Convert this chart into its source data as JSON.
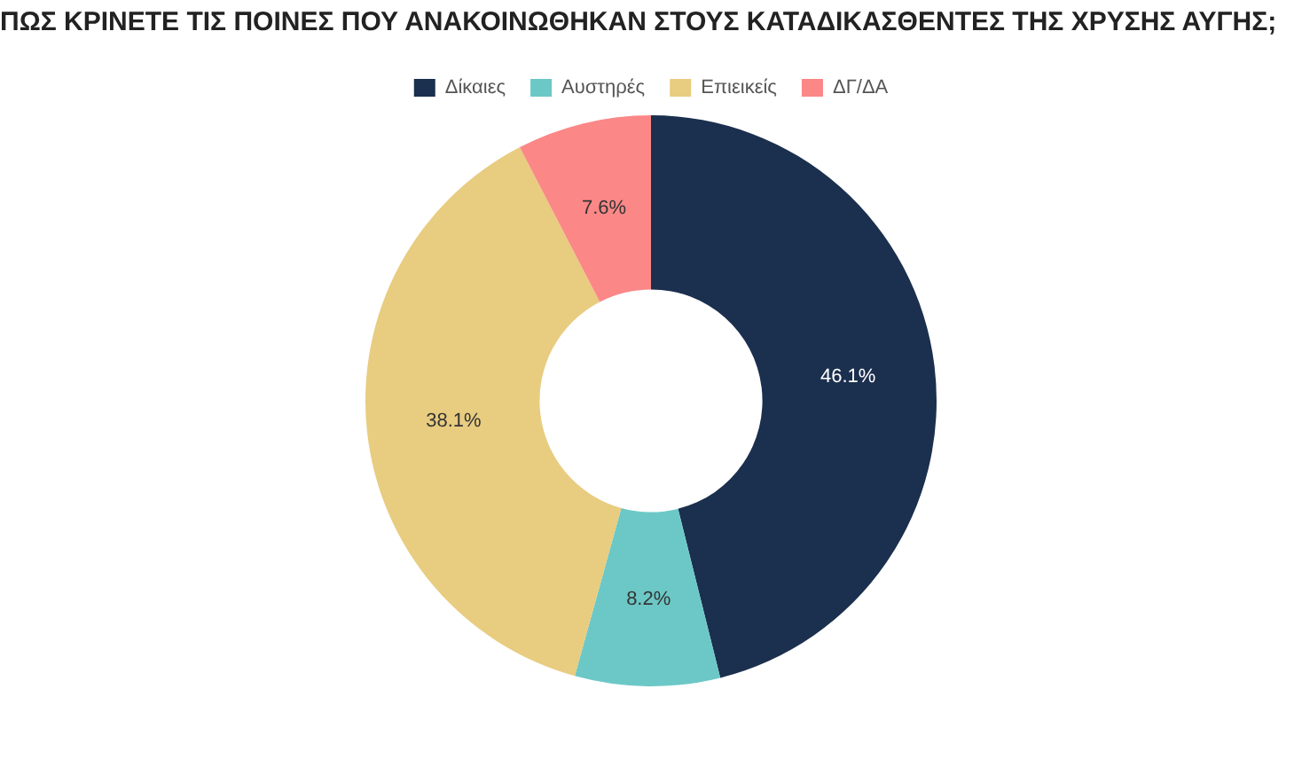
{
  "chart_data": {
    "type": "donut",
    "title": "ΠΩΣ ΚΡΙΝΕΤΕ ΤΙΣ ΠΟΙΝΕΣ ΠΟΥ ΑΝΑΚΟΙΝΩΘΗΚΑΝ ΣΤΟΥΣ ΚΑΤΑΔΙΚΑΣΘΕΝΤΕΣ ΤΗΣ ΧΡΥΣΗΣ ΑΥΓΗΣ;",
    "categories": [
      "Δίκαιες",
      "Αυστηρές",
      "Επιεικείς",
      "ΔΓ/ΔΑ"
    ],
    "values": [
      46.1,
      8.2,
      38.1,
      7.6
    ],
    "colors": [
      "#1b2f4e",
      "#6cc8c6",
      "#e8cc80",
      "#fb8787"
    ],
    "value_labels": [
      "46.1%",
      "8.2%",
      "38.1%",
      "7.6%"
    ],
    "legend": "top"
  }
}
